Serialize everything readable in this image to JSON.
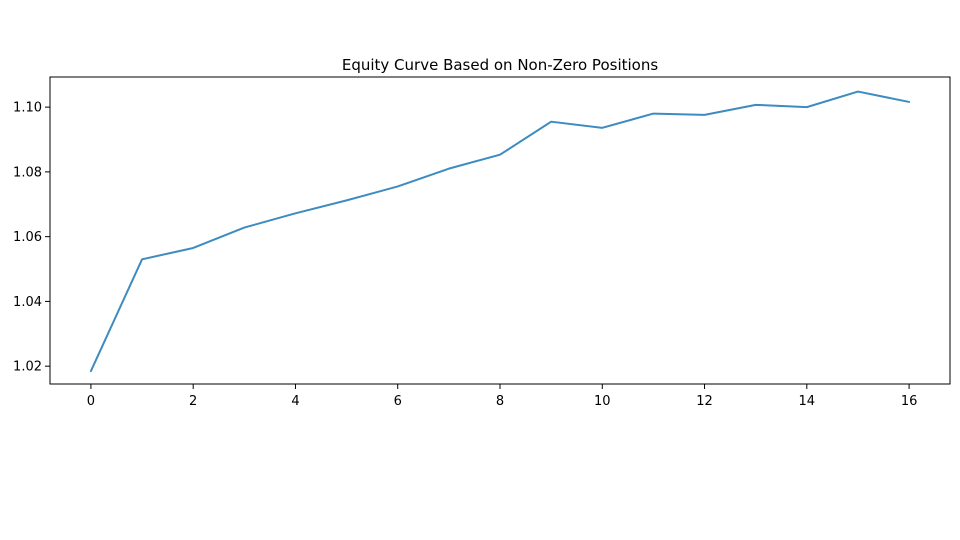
{
  "chart_data": {
    "type": "line",
    "title": "Equity Curve Based on Non-Zero Positions",
    "xlabel": "",
    "ylabel": "",
    "x": [
      0,
      1,
      2,
      3,
      4,
      5,
      6,
      7,
      8,
      9,
      10,
      11,
      12,
      13,
      14,
      15,
      16
    ],
    "series": [
      {
        "values": [
          1.0185,
          1.053,
          1.0565,
          1.0628,
          1.0672,
          1.0712,
          1.0755,
          1.081,
          1.0853,
          1.0955,
          1.0936,
          1.098,
          1.0976,
          1.1007,
          1.1,
          1.1048,
          1.1016
        ],
        "color": "#3d8bc0"
      }
    ],
    "xlim": [
      -0.8,
      16.8
    ],
    "ylim": [
      1.0145,
      1.1093
    ],
    "xticks": [
      0,
      2,
      4,
      6,
      8,
      10,
      12,
      14,
      16
    ],
    "yticks": [
      1.02,
      1.04,
      1.06,
      1.08,
      1.1
    ],
    "xtick_labels": [
      "0",
      "2",
      "4",
      "6",
      "8",
      "10",
      "12",
      "14",
      "16"
    ],
    "ytick_labels": [
      "1.02",
      "1.04",
      "1.06",
      "1.08",
      "1.10"
    ],
    "grid": false,
    "legend": "none"
  }
}
